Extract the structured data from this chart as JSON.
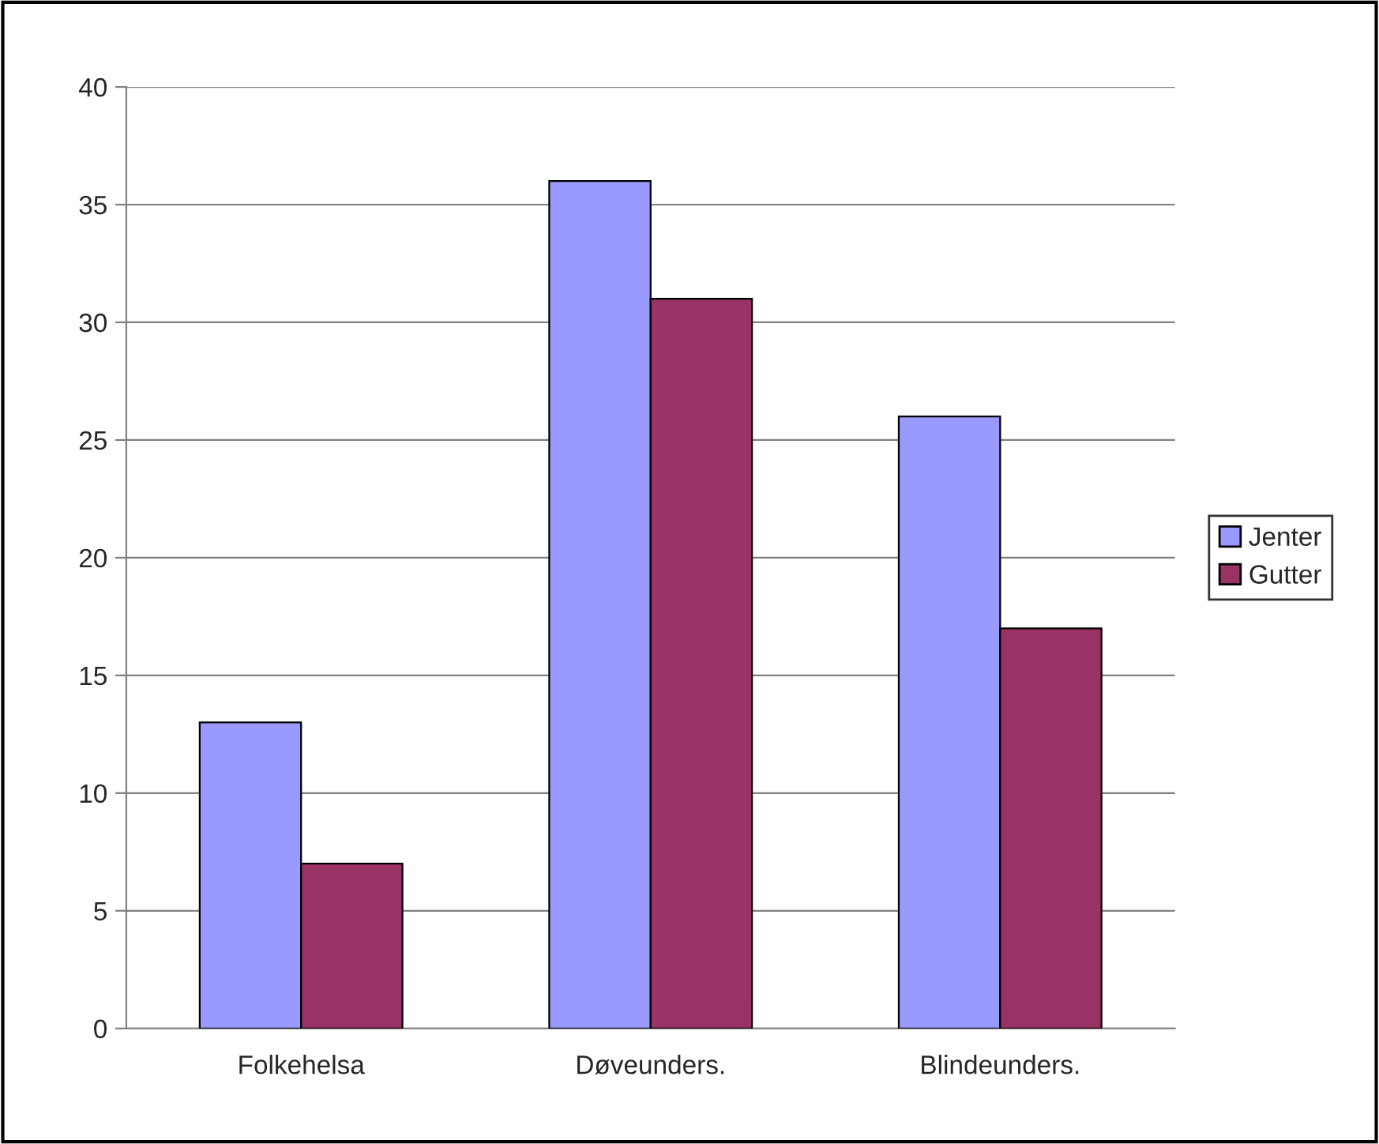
{
  "chart_data": {
    "type": "bar",
    "categories": [
      "Folkehelsa",
      "Døveunders.",
      "Blindeunders."
    ],
    "series": [
      {
        "name": "Jenter",
        "color": "#9999ff",
        "values": [
          13,
          36,
          26
        ]
      },
      {
        "name": "Gutter",
        "color": "#993366",
        "values": [
          7,
          31,
          17
        ]
      }
    ],
    "ylim": [
      0,
      40
    ],
    "yticks": [
      0,
      5,
      10,
      15,
      20,
      25,
      30,
      35,
      40
    ],
    "grid": "y",
    "legend": "right"
  }
}
